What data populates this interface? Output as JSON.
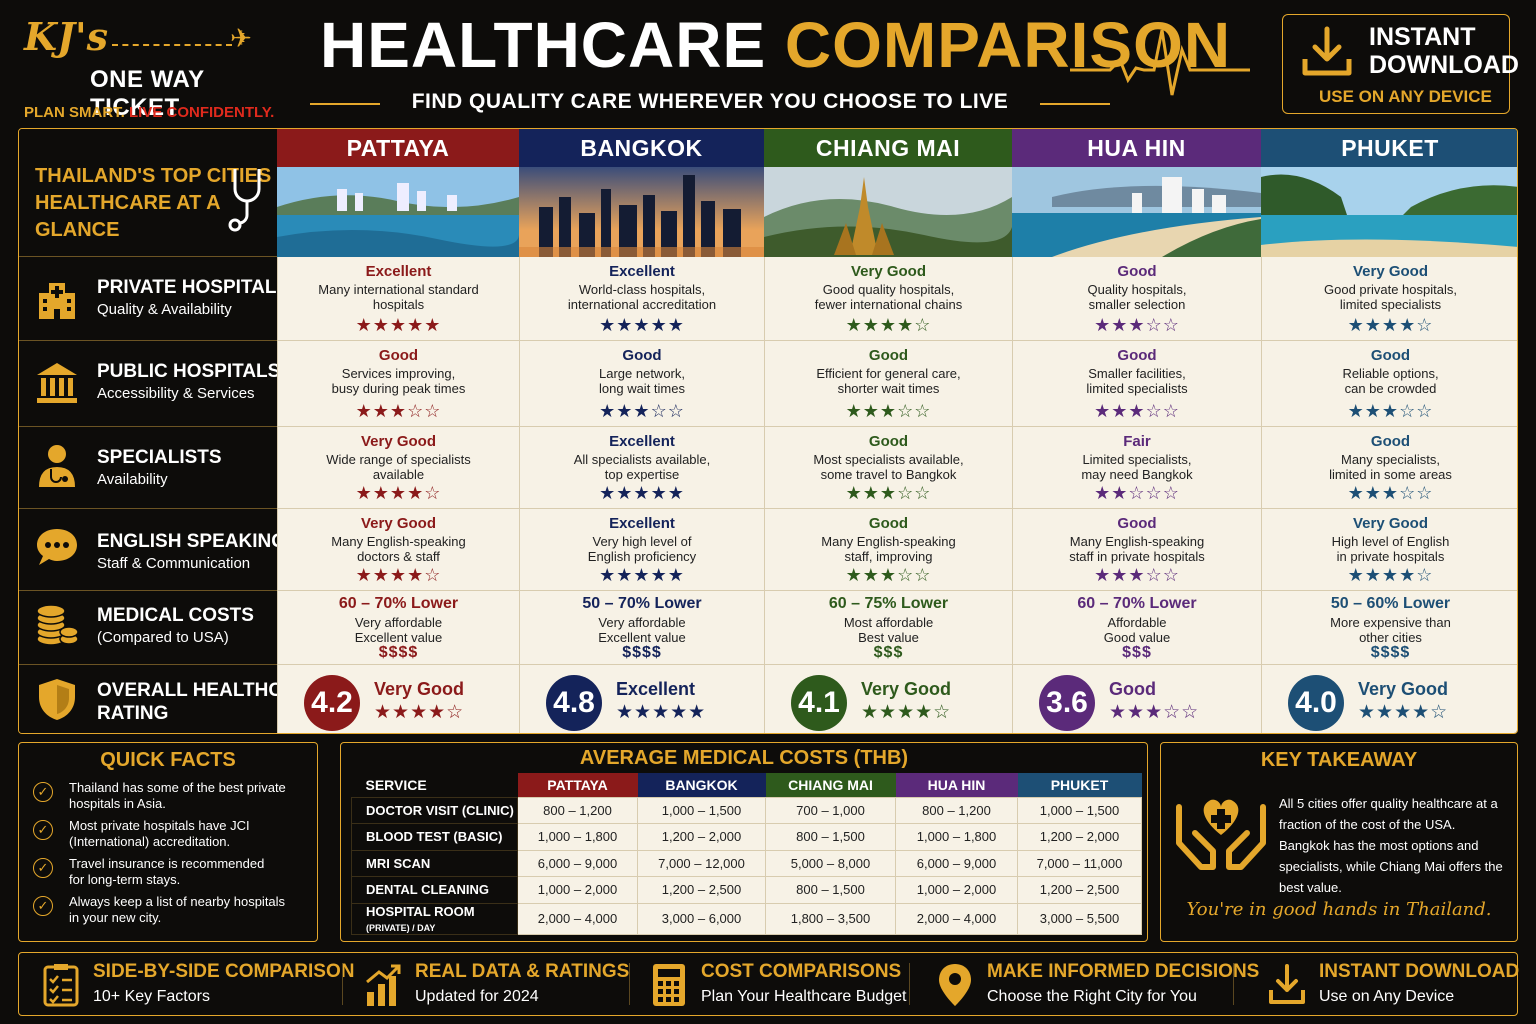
{
  "brand": {
    "name": "KJ's",
    "line2": "ONE WAY TICKET",
    "tag_a": "PLAN SMART.",
    "tag_b": "LIVE CONFIDENTLY."
  },
  "title": {
    "part1": "HEALTHCARE",
    "part2": "COMPARISON",
    "subtitle": "FIND QUALITY CARE WHEREVER YOU CHOOSE TO LIVE"
  },
  "download": {
    "line1": "INSTANT",
    "line2": "DOWNLOAD",
    "sub": "USE ON ANY DEVICE"
  },
  "corner": {
    "line1": "THAILAND'S TOP CITIES",
    "line2": "HEALTHCARE AT A GLANCE"
  },
  "colors": {
    "gold": "#e4a72b",
    "pattaya": "#8b1a1a",
    "bangkok": "#14235a",
    "chiangmai": "#2e5a1c",
    "huahin": "#5b2a7a",
    "phuket": "#1d4f75"
  },
  "cities": [
    {
      "name": "PATTAYA",
      "color": "#8b1a1a",
      "text": "#8b1a1a"
    },
    {
      "name": "BANGKOK",
      "color": "#14235a",
      "text": "#14235a"
    },
    {
      "name": "CHIANG MAI",
      "color": "#2e5a1c",
      "text": "#2e5a1c"
    },
    {
      "name": "HUA HIN",
      "color": "#5b2a7a",
      "text": "#5b2a7a"
    },
    {
      "name": "PHUKET",
      "color": "#1d4f75",
      "text": "#1d4f75"
    }
  ],
  "rows": [
    {
      "title": "PRIVATE HOSPITALS",
      "sub": "Quality & Availability",
      "icon": "hospital-icon",
      "cells": [
        {
          "rating": "Excellent",
          "desc1": "Many international standard",
          "desc2": "hospitals",
          "stars": "★★★★★"
        },
        {
          "rating": "Excellent",
          "desc1": "World-class hospitals,",
          "desc2": "international accreditation",
          "stars": "★★★★★"
        },
        {
          "rating": "Very Good",
          "desc1": "Good quality hospitals,",
          "desc2": "fewer international chains",
          "stars": "★★★★☆"
        },
        {
          "rating": "Good",
          "desc1": "Quality hospitals,",
          "desc2": "smaller selection",
          "stars": "★★★☆☆"
        },
        {
          "rating": "Very Good",
          "desc1": "Good private hospitals,",
          "desc2": "limited specialists",
          "stars": "★★★★☆"
        }
      ]
    },
    {
      "title": "PUBLIC HOSPITALS",
      "sub": "Accessibility & Services",
      "icon": "building-icon",
      "cells": [
        {
          "rating": "Good",
          "desc1": "Services improving,",
          "desc2": "busy during peak times",
          "stars": "★★★☆☆"
        },
        {
          "rating": "Good",
          "desc1": "Large network,",
          "desc2": "long wait times",
          "stars": "★★★☆☆"
        },
        {
          "rating": "Good",
          "desc1": "Efficient for general care,",
          "desc2": "shorter wait times",
          "stars": "★★★☆☆"
        },
        {
          "rating": "Good",
          "desc1": "Smaller facilities,",
          "desc2": "limited specialists",
          "stars": "★★★☆☆"
        },
        {
          "rating": "Good",
          "desc1": "Reliable options,",
          "desc2": "can be crowded",
          "stars": "★★★☆☆"
        }
      ]
    },
    {
      "title": "SPECIALISTS",
      "sub": "Availability",
      "icon": "doctor-icon",
      "cells": [
        {
          "rating": "Very Good",
          "desc1": "Wide range of specialists",
          "desc2": "available",
          "stars": "★★★★☆"
        },
        {
          "rating": "Excellent",
          "desc1": "All specialists available,",
          "desc2": "top expertise",
          "stars": "★★★★★"
        },
        {
          "rating": "Good",
          "desc1": "Most specialists available,",
          "desc2": "some travel to Bangkok",
          "stars": "★★★☆☆"
        },
        {
          "rating": "Fair",
          "desc1": "Limited specialists,",
          "desc2": "may need Bangkok",
          "stars": "★★☆☆☆"
        },
        {
          "rating": "Good",
          "desc1": "Many specialists,",
          "desc2": "limited in some areas",
          "stars": "★★★☆☆"
        }
      ]
    },
    {
      "title": "ENGLISH SPEAKING",
      "sub": "Staff & Communication",
      "icon": "chat-icon",
      "cells": [
        {
          "rating": "Very Good",
          "desc1": "Many English-speaking",
          "desc2": "doctors & staff",
          "stars": "★★★★☆"
        },
        {
          "rating": "Excellent",
          "desc1": "Very high level of",
          "desc2": "English proficiency",
          "stars": "★★★★★"
        },
        {
          "rating": "Good",
          "desc1": "Many English-speaking",
          "desc2": "staff, improving",
          "stars": "★★★☆☆"
        },
        {
          "rating": "Good",
          "desc1": "Many English-speaking",
          "desc2": "staff in private hospitals",
          "stars": "★★★☆☆"
        },
        {
          "rating": "Very Good",
          "desc1": "High level of English",
          "desc2": "in private hospitals",
          "stars": "★★★★☆"
        }
      ]
    }
  ],
  "costs_row": {
    "title": "MEDICAL COSTS",
    "sub": "(Compared to USA)",
    "cells": [
      {
        "cost": "60 – 70% Lower",
        "desc1": "Very affordable",
        "desc2": "Excellent value",
        "dollars": "$$$$"
      },
      {
        "cost": "50 – 70% Lower",
        "desc1": "Very affordable",
        "desc2": "Excellent value",
        "dollars": "$$$$"
      },
      {
        "cost": "60 – 75% Lower",
        "desc1": "Most affordable",
        "desc2": "Best value",
        "dollars": "$$$"
      },
      {
        "cost": "60 – 70% Lower",
        "desc1": "Affordable",
        "desc2": "Good value",
        "dollars": "$$$"
      },
      {
        "cost": "50 – 60% Lower",
        "desc1": "More expensive than",
        "desc2": "other cities",
        "dollars": "$$$$"
      }
    ]
  },
  "overall": {
    "title1": "OVERALL HEALTHCARE",
    "title2": "RATING",
    "cells": [
      {
        "score": "4.2",
        "label": "Very Good",
        "stars": "★★★★☆"
      },
      {
        "score": "4.8",
        "label": "Excellent",
        "stars": "★★★★★"
      },
      {
        "score": "4.1",
        "label": "Very Good",
        "stars": "★★★★☆"
      },
      {
        "score": "3.6",
        "label": "Good",
        "stars": "★★★☆☆"
      },
      {
        "score": "4.0",
        "label": "Very Good",
        "stars": "★★★★☆"
      }
    ]
  },
  "quick_facts": {
    "title": "QUICK FACTS",
    "items": [
      {
        "l1": "Thailand has some of the best private",
        "l2": "hospitals in Asia."
      },
      {
        "l1": "Most private hospitals have JCI",
        "l2": "(International) accreditation."
      },
      {
        "l1": "Travel insurance is recommended",
        "l2": "for long-term stays."
      },
      {
        "l1": "Always keep a list of nearby hospitals",
        "l2": "in your new city."
      }
    ]
  },
  "avg_costs": {
    "title": "AVERAGE MEDICAL COSTS (THB)",
    "service_header": "SERVICE",
    "cities": [
      "PATTAYA",
      "BANGKOK",
      "CHIANG MAI",
      "HUA HIN",
      "PHUKET"
    ],
    "rows": [
      {
        "service": "DOCTOR VISIT (CLINIC)",
        "suffix": "",
        "values": [
          "800 – 1,200",
          "1,000 – 1,500",
          "700 – 1,000",
          "800 – 1,200",
          "1,000 – 1,500"
        ]
      },
      {
        "service": "BLOOD TEST (BASIC)",
        "suffix": "",
        "values": [
          "1,000 – 1,800",
          "1,200 – 2,000",
          "800 – 1,500",
          "1,000 – 1,800",
          "1,200 – 2,000"
        ]
      },
      {
        "service": "MRI SCAN",
        "suffix": "",
        "values": [
          "6,000 – 9,000",
          "7,000 – 12,000",
          "5,000 – 8,000",
          "6,000 – 9,000",
          "7,000 – 11,000"
        ]
      },
      {
        "service": "DENTAL CLEANING",
        "suffix": "",
        "values": [
          "1,000 – 2,000",
          "1,200 – 2,500",
          "800 – 1,500",
          "1,000 – 2,000",
          "1,200 – 2,500"
        ]
      },
      {
        "service": "HOSPITAL ROOM",
        "suffix": "(PRIVATE) / DAY",
        "values": [
          "2,000 – 4,000",
          "3,000 – 6,000",
          "1,800 – 3,500",
          "2,000 – 4,000",
          "3,000 – 5,500"
        ]
      }
    ]
  },
  "key_takeaway": {
    "title": "KEY TAKEAWAY",
    "text": "All 5 cities offer quality healthcare at a fraction of the cost of the USA. Bangkok has the most options and specialists, while Chiang Mai offers the best value.",
    "quote": "You're in good hands in Thailand."
  },
  "footer": [
    {
      "title": "SIDE-BY-SIDE COMPARISON",
      "sub": "10+ Key Factors",
      "icon": "checklist-icon"
    },
    {
      "title": "REAL DATA & RATINGS",
      "sub": "Updated for 2024",
      "icon": "chart-icon"
    },
    {
      "title": "COST COMPARISONS",
      "sub": "Plan Your Healthcare Budget",
      "icon": "calculator-icon"
    },
    {
      "title": "MAKE INFORMED DECISIONS",
      "sub": "Choose the Right City for You",
      "icon": "map-pin-icon"
    },
    {
      "title": "INSTANT DOWNLOAD",
      "sub": "Use on Any Device",
      "icon": "download-icon"
    }
  ]
}
